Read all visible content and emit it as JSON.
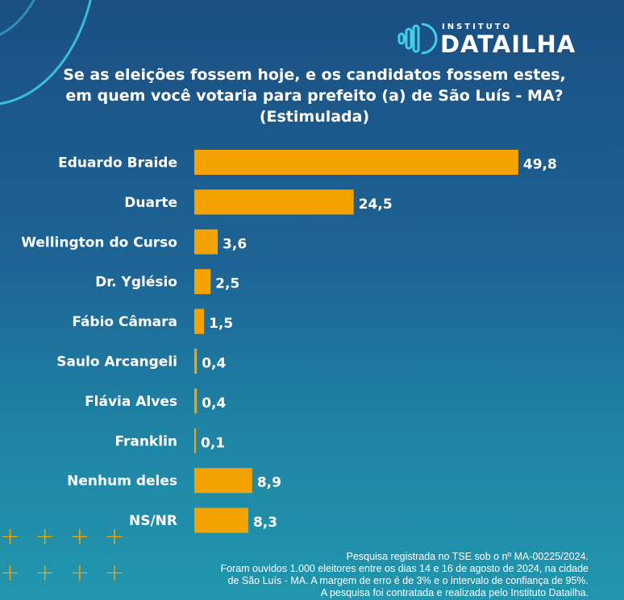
{
  "logo": {
    "small": "INSTITUTO",
    "big": "DATAILHA"
  },
  "title": [
    "Se as eleições fossem hoje, e os candidatos fossem estes,",
    "em quem você votaria para prefeito (a) de São Luís - MA?",
    "(Estimulada)"
  ],
  "colors": {
    "bar": "#f4a300",
    "text": "#ffffff",
    "accent": "#3fd0e8"
  },
  "chart_data": {
    "type": "bar",
    "orientation": "horizontal",
    "categories": [
      "Eduardo Braide",
      "Duarte",
      "Wellington do Curso",
      "Dr. Yglésio",
      "Fábio Câmara",
      "Saulo Arcangeli",
      "Flávia Alves",
      "Franklin",
      "Nenhum deles",
      "NS/NR"
    ],
    "values": [
      49.8,
      24.5,
      3.6,
      2.5,
      1.5,
      0.4,
      0.4,
      0.1,
      8.9,
      8.3
    ],
    "labels": [
      "49,8",
      "24,5",
      "3,6",
      "2,5",
      "1,5",
      "0,4",
      "0,4",
      "0,1",
      "8,9",
      "8,3"
    ],
    "grid": false
  },
  "footnote": [
    "Pesquisa registrada no TSE sob o nº MA-00225/2024.",
    "Foram ouvidos 1.000 eleitores entre os dias 14 e 16 de agosto de 2024, na cidade",
    "de São Luís - MA. A margem de erro é de 3% e o intervalo de confiança de 95%.",
    "A pesquisa foi contratada e realizada pelo Instituto Datailha."
  ]
}
